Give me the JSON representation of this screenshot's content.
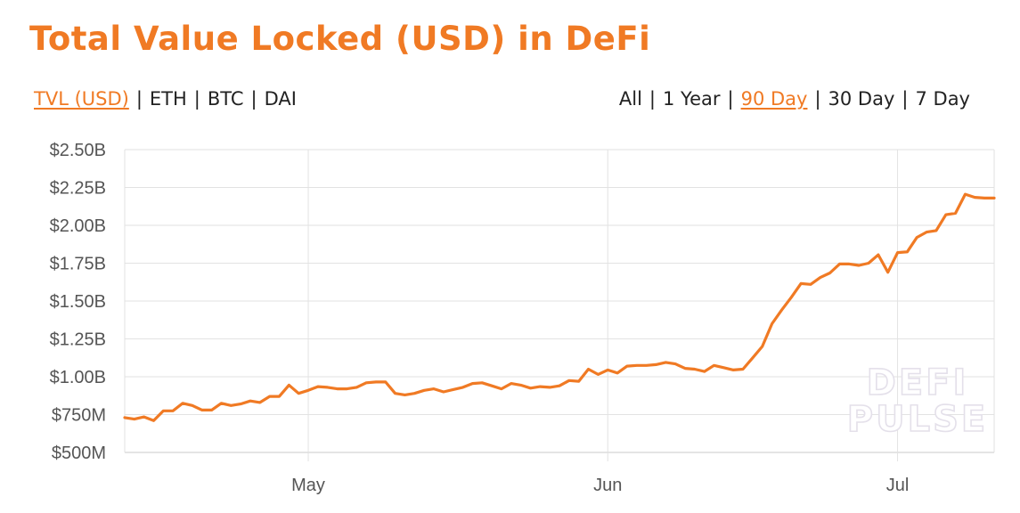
{
  "title": "Total Value Locked (USD) in DeFi",
  "metric_tabs": [
    {
      "label": "TVL (USD)",
      "active": true
    },
    {
      "label": "ETH",
      "active": false
    },
    {
      "label": "BTC",
      "active": false
    },
    {
      "label": "DAI",
      "active": false
    }
  ],
  "range_tabs": [
    {
      "label": "All",
      "active": false
    },
    {
      "label": "1 Year",
      "active": false
    },
    {
      "label": "90 Day",
      "active": true
    },
    {
      "label": "30 Day",
      "active": false
    },
    {
      "label": "7 Day",
      "active": false
    }
  ],
  "separator": "|",
  "watermark": [
    "DEFI",
    "PULSE"
  ],
  "colors": {
    "accent": "#f07a24",
    "line": "#f07a24",
    "grid": "#e2e2e2",
    "text": "#222222"
  },
  "chart_data": {
    "type": "line",
    "title": "Total Value Locked (USD) in DeFi",
    "xlabel": "",
    "ylabel": "",
    "x_unit": "day",
    "x_range": [
      "2020-04-12",
      "2020-07-11"
    ],
    "ylim": [
      500000000,
      2500000000
    ],
    "y_ticks": [
      500000000,
      750000000,
      1000000000,
      1250000000,
      1500000000,
      1750000000,
      2000000000,
      2250000000,
      2500000000
    ],
    "y_tick_labels": [
      "$500M",
      "$750M",
      "$1.00B",
      "$1.25B",
      "$1.50B",
      "$1.75B",
      "$2.00B",
      "$2.25B",
      "$2.50B"
    ],
    "x_ticks": [
      {
        "date": "2020-05-01",
        "label": "May"
      },
      {
        "date": "2020-06-01",
        "label": "Jun"
      },
      {
        "date": "2020-07-01",
        "label": "Jul"
      }
    ],
    "grid": true,
    "legend": "none",
    "series": [
      {
        "x": [
          "2020-04-12",
          "2020-04-13",
          "2020-04-14",
          "2020-04-15",
          "2020-04-16",
          "2020-04-17",
          "2020-04-18",
          "2020-04-19",
          "2020-04-20",
          "2020-04-21",
          "2020-04-22",
          "2020-04-23",
          "2020-04-24",
          "2020-04-25",
          "2020-04-26",
          "2020-04-27",
          "2020-04-28",
          "2020-04-29",
          "2020-04-30",
          "2020-05-01",
          "2020-05-02",
          "2020-05-03",
          "2020-05-04",
          "2020-05-05",
          "2020-05-06",
          "2020-05-07",
          "2020-05-08",
          "2020-05-09",
          "2020-05-10",
          "2020-05-11",
          "2020-05-12",
          "2020-05-13",
          "2020-05-14",
          "2020-05-15",
          "2020-05-16",
          "2020-05-17",
          "2020-05-18",
          "2020-05-19",
          "2020-05-20",
          "2020-05-21",
          "2020-05-22",
          "2020-05-23",
          "2020-05-24",
          "2020-05-25",
          "2020-05-26",
          "2020-05-27",
          "2020-05-28",
          "2020-05-29",
          "2020-05-30",
          "2020-05-31",
          "2020-06-01",
          "2020-06-02",
          "2020-06-03",
          "2020-06-04",
          "2020-06-05",
          "2020-06-06",
          "2020-06-07",
          "2020-06-08",
          "2020-06-09",
          "2020-06-10",
          "2020-06-11",
          "2020-06-12",
          "2020-06-13",
          "2020-06-14",
          "2020-06-15",
          "2020-06-16",
          "2020-06-17",
          "2020-06-18",
          "2020-06-19",
          "2020-06-20",
          "2020-06-21",
          "2020-06-22",
          "2020-06-23",
          "2020-06-24",
          "2020-06-25",
          "2020-06-26",
          "2020-06-27",
          "2020-06-28",
          "2020-06-29",
          "2020-06-30",
          "2020-07-01",
          "2020-07-02",
          "2020-07-03",
          "2020-07-04",
          "2020-07-05",
          "2020-07-06",
          "2020-07-07",
          "2020-07-08",
          "2020-07-09",
          "2020-07-10",
          "2020-07-11"
        ],
        "y": [
          730000000,
          720000000,
          735000000,
          710000000,
          775000000,
          775000000,
          825000000,
          810000000,
          780000000,
          780000000,
          825000000,
          810000000,
          820000000,
          840000000,
          830000000,
          870000000,
          870000000,
          945000000,
          890000000,
          910000000,
          935000000,
          930000000,
          920000000,
          920000000,
          930000000,
          960000000,
          965000000,
          965000000,
          890000000,
          880000000,
          890000000,
          910000000,
          920000000,
          900000000,
          915000000,
          930000000,
          955000000,
          960000000,
          940000000,
          920000000,
          955000000,
          945000000,
          925000000,
          935000000,
          930000000,
          940000000,
          975000000,
          970000000,
          1050000000,
          1015000000,
          1045000000,
          1025000000,
          1070000000,
          1075000000,
          1075000000,
          1080000000,
          1095000000,
          1085000000,
          1055000000,
          1050000000,
          1035000000,
          1075000000,
          1060000000,
          1045000000,
          1050000000,
          1125000000,
          1200000000,
          1350000000,
          1440000000,
          1525000000,
          1615000000,
          1610000000,
          1655000000,
          1685000000,
          1745000000,
          1745000000,
          1735000000,
          1750000000,
          1805000000,
          1690000000,
          1820000000,
          1825000000,
          1920000000,
          1955000000,
          1965000000,
          2070000000,
          2080000000,
          2205000000,
          2185000000,
          2180000000,
          2180000000
        ]
      }
    ]
  }
}
